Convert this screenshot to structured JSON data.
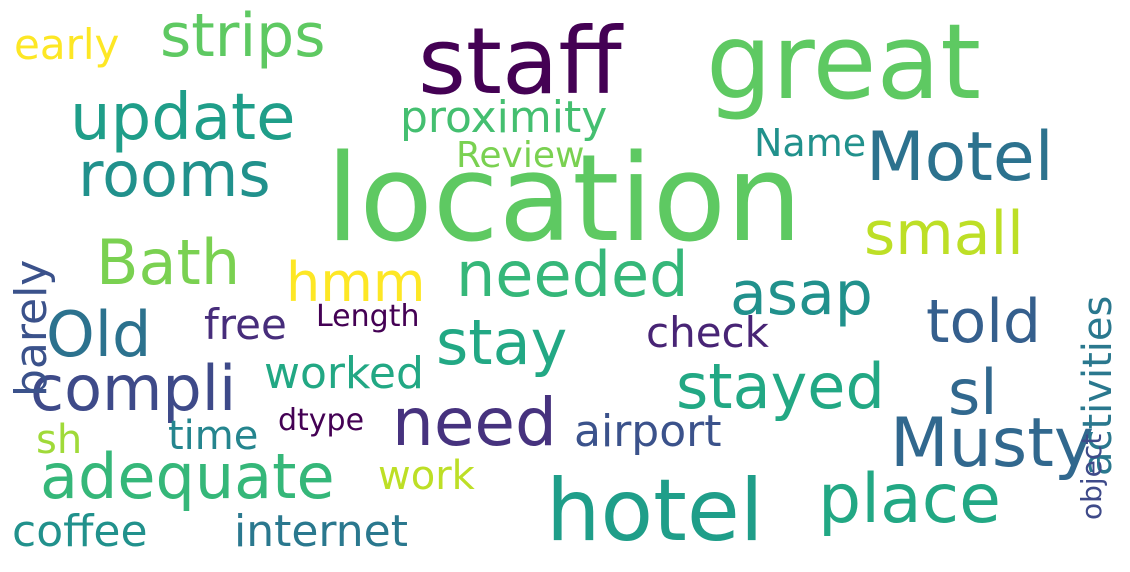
{
  "wordcloud": {
    "words": {
      "location": {
        "text": "location",
        "color": "#5ec962"
      },
      "great": {
        "text": "great",
        "color": "#5ec962"
      },
      "staff": {
        "text": "staff",
        "color": "#440154"
      },
      "hotel": {
        "text": "hotel",
        "color": "#1f9e89"
      },
      "motel": {
        "text": "Motel",
        "color": "#2c728e"
      },
      "musty": {
        "text": "Musty",
        "color": "#31688e"
      },
      "place": {
        "text": "place",
        "color": "#22a884"
      },
      "update": {
        "text": "update",
        "color": "#1f9e89"
      },
      "rooms": {
        "text": "rooms",
        "color": "#21918c"
      },
      "strips": {
        "text": "strips",
        "color": "#5ec962"
      },
      "bath": {
        "text": "Bath",
        "color": "#7ad151"
      },
      "needed": {
        "text": "needed",
        "color": "#35b779"
      },
      "small": {
        "text": "small",
        "color": "#bddf26"
      },
      "asap": {
        "text": "asap",
        "color": "#21918c"
      },
      "told": {
        "text": "told",
        "color": "#355f8d"
      },
      "old": {
        "text": "Old",
        "color": "#2c728e"
      },
      "stay": {
        "text": "stay",
        "color": "#22a884"
      },
      "compli": {
        "text": "compli",
        "color": "#3e4a89"
      },
      "stayed": {
        "text": "stayed",
        "color": "#22a884"
      },
      "sl": {
        "text": "sl",
        "color": "#31688e"
      },
      "need": {
        "text": "need",
        "color": "#46327e"
      },
      "adequate": {
        "text": "adequate",
        "color": "#35b779"
      },
      "hmm": {
        "text": "hmm",
        "color": "#fde725"
      },
      "proximity": {
        "text": "proximity",
        "color": "#44bf70"
      },
      "airport": {
        "text": "airport",
        "color": "#3b528b"
      },
      "internet": {
        "text": "internet",
        "color": "#2a788e"
      },
      "coffee": {
        "text": "coffee",
        "color": "#21918c"
      },
      "worked": {
        "text": "worked",
        "color": "#22a884"
      },
      "check": {
        "text": "check",
        "color": "#482475"
      },
      "early": {
        "text": "early",
        "color": "#fde725"
      },
      "free": {
        "text": "free",
        "color": "#472d7b"
      },
      "time": {
        "text": "time",
        "color": "#25858e"
      },
      "work": {
        "text": "work",
        "color": "#bddf26"
      },
      "sh": {
        "text": "sh",
        "color": "#a0da39"
      },
      "name": {
        "text": "Name",
        "color": "#21918c"
      },
      "review": {
        "text": "Review",
        "color": "#7ad151"
      },
      "length": {
        "text": "Length",
        "color": "#440154"
      },
      "dtype": {
        "text": "dtype",
        "color": "#440154"
      },
      "barely": {
        "text": "barely",
        "color": "#3b528b"
      },
      "activities": {
        "text": "activities",
        "color": "#2a788e"
      },
      "object": {
        "text": "object",
        "color": "#3e4a89"
      }
    }
  }
}
